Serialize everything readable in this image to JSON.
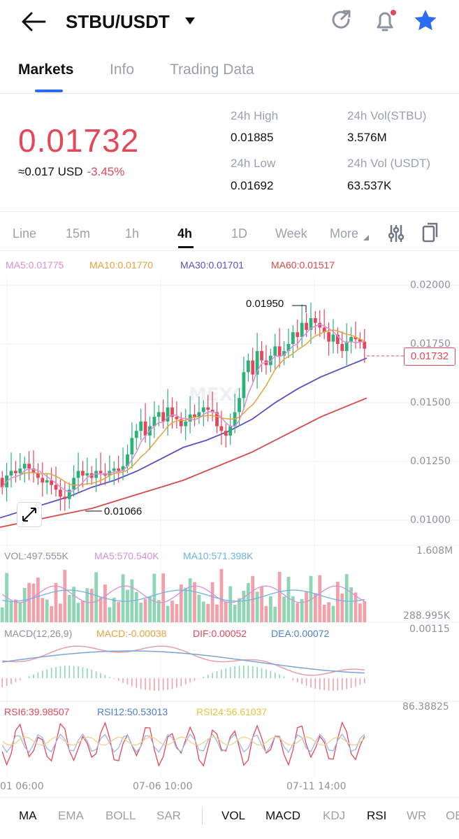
{
  "header": {
    "pair": "STBU/USDT"
  },
  "tabs": [
    "Markets",
    "Info",
    "Trading Data"
  ],
  "ticker": {
    "price": "0.01732",
    "usd": "≈0.017 USD",
    "change": "-3.45%"
  },
  "stats": {
    "high_label": "24h High",
    "high": "0.01885",
    "low_label": "24h Low",
    "low": "0.01692",
    "vol_stbu_label": "24h Vol(STBU)",
    "vol_stbu": "3.576M",
    "vol_usdt_label": "24h Vol (USDT)",
    "vol_usdt": "63.537K"
  },
  "periods": [
    "Line",
    "15m",
    "1h",
    "4h",
    "1D",
    "Week",
    "More"
  ],
  "ma_legend": {
    "ma5": "MA5:0.01775",
    "ma10": "MA10:0.01770",
    "ma30": "MA30:0.01701",
    "ma60": "MA60:0.01517"
  },
  "price_axis": [
    "0.02000",
    "0.01750",
    "0.01500",
    "0.01250",
    "0.01000"
  ],
  "current_price_tag": "0.01732",
  "high_marker": "0.01950",
  "low_marker": "0.01066",
  "volume": {
    "vol": "VOL:497.555K",
    "ma5": "MA5:570.540K",
    "ma10": "MA10:571.398K",
    "max": "1.608M",
    "min": "288.995K"
  },
  "macd": {
    "title": "MACD(12,26,9)",
    "macd": "MACD:-0.00038",
    "dif": "DIF:0.00052",
    "dea": "DEA:0.00072",
    "max": "0.00115"
  },
  "rsi": {
    "rsi6": "RSI6:39.98507",
    "rsi12": "RSI12:50.53013",
    "rsi24": "RSI24:56.61037",
    "max": "86.38825"
  },
  "time_axis": [
    "01 06:00",
    "07-06 10:00",
    "07-11 14:00"
  ],
  "indicators": [
    "MA",
    "EMA",
    "BOLL",
    "SAR",
    "VOL",
    "MACD",
    "KDJ",
    "RSI",
    "WR",
    "OB"
  ],
  "colors": {
    "up": "#2bb07a",
    "down": "#e5475a",
    "accent": "#2a6df4",
    "ma5": "#d98fd6",
    "ma10": "#e8a23b",
    "ma30": "#5b4fc4",
    "ma60": "#d64a4a"
  },
  "chart_data": {
    "type": "candlestick",
    "note_series": "approximate, read from chart",
    "ma30": [
      0.0101,
      0.0104,
      0.0107,
      0.011,
      0.0114,
      0.0117,
      0.0121,
      0.0126,
      0.0131,
      0.0134,
      0.0138,
      0.0143,
      0.015,
      0.0156,
      0.0161,
      0.0165,
      0.0169
    ],
    "ma60": [
      0.0097,
      0.0099,
      0.0101,
      0.0103,
      0.0105,
      0.0108,
      0.0111,
      0.0114,
      0.0117,
      0.0121,
      0.0125,
      0.0129,
      0.0134,
      0.0139,
      0.0144,
      0.0148,
      0.0152
    ]
  }
}
